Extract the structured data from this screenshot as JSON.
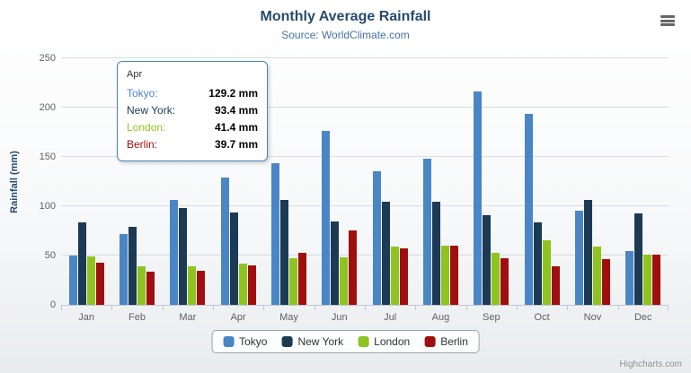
{
  "title": "Monthly Average Rainfall",
  "subtitle": "Source: WorldClimate.com",
  "y_axis_title": "Rainfall (mm)",
  "credits": "Highcharts.com",
  "chart_data": {
    "type": "bar",
    "title": "Monthly Average Rainfall",
    "subtitle": "Source: WorldClimate.com",
    "xlabel": "",
    "ylabel": "Rainfall (mm)",
    "ylim": [
      0,
      250
    ],
    "ytick_interval": 50,
    "grid": true,
    "legend_position": "bottom",
    "categories": [
      "Jan",
      "Feb",
      "Mar",
      "Apr",
      "May",
      "Jun",
      "Jul",
      "Aug",
      "Sep",
      "Oct",
      "Nov",
      "Dec"
    ],
    "series": [
      {
        "name": "Tokyo",
        "color": "#4A86C6",
        "values": [
          49.9,
          71.5,
          106.4,
          129.2,
          144.0,
          176.0,
          135.6,
          148.5,
          216.4,
          194.1,
          95.6,
          54.4
        ]
      },
      {
        "name": "New York",
        "color": "#1C3A54",
        "values": [
          83.6,
          78.8,
          98.5,
          93.4,
          106.0,
          84.5,
          105.0,
          104.3,
          91.2,
          83.5,
          106.6,
          92.3
        ]
      },
      {
        "name": "London",
        "color": "#8FC320",
        "values": [
          48.9,
          38.8,
          39.3,
          41.4,
          47.0,
          48.3,
          59.0,
          59.6,
          52.4,
          65.2,
          59.3,
          51.2
        ]
      },
      {
        "name": "Berlin",
        "color": "#A00F0F",
        "values": [
          42.4,
          33.2,
          34.5,
          39.7,
          52.6,
          75.5,
          57.4,
          60.4,
          47.6,
          39.1,
          46.8,
          51.1
        ]
      }
    ]
  },
  "tooltip": {
    "header": "Apr",
    "rows": [
      {
        "name": "Tokyo",
        "value": "129.2 mm"
      },
      {
        "name": "New York",
        "value": "93.4 mm"
      },
      {
        "name": "London",
        "value": "41.4 mm"
      },
      {
        "name": "Berlin",
        "value": "39.7 mm"
      }
    ]
  }
}
